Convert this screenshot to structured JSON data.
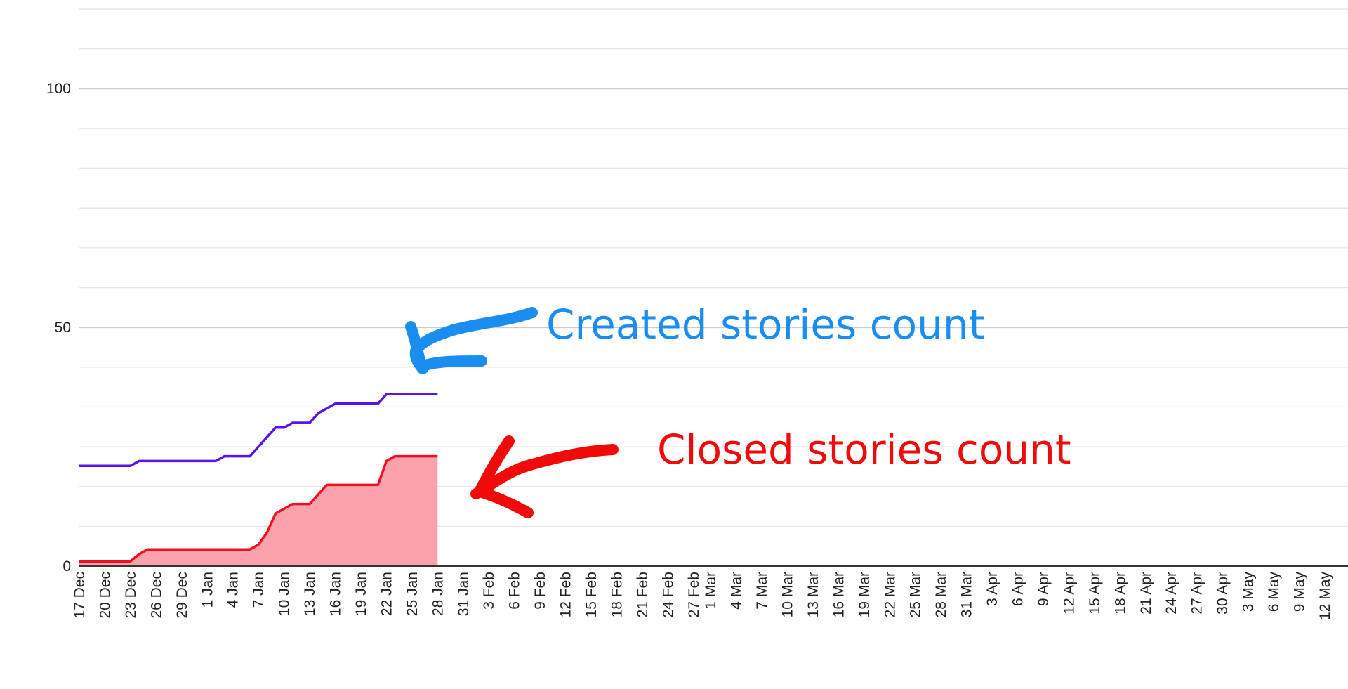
{
  "chart_data": {
    "type": "line",
    "title": "",
    "xlabel": "",
    "ylabel": "",
    "ylim": [
      0,
      118
    ],
    "y_ticks": [
      0,
      50,
      100
    ],
    "y_minor_step": 8.33,
    "grid": true,
    "x_tick_labels": [
      "17 Dec",
      "20 Dec",
      "23 Dec",
      "26 Dec",
      "29 Dec",
      "1 Jan",
      "4 Jan",
      "7 Jan",
      "10 Jan",
      "13 Jan",
      "16 Jan",
      "19 Jan",
      "22 Jan",
      "25 Jan",
      "28 Jan",
      "31 Jan",
      "3 Feb",
      "6 Feb",
      "9 Feb",
      "12 Feb",
      "15 Feb",
      "18 Feb",
      "21 Feb",
      "24 Feb",
      "27 Feb",
      "1 Mar",
      "4 Mar",
      "7 Mar",
      "10 Mar",
      "13 Mar",
      "16 Mar",
      "19 Mar",
      "22 Mar",
      "25 Mar",
      "28 Mar",
      "31 Mar",
      "3 Apr",
      "6 Apr",
      "9 Apr",
      "12 Apr",
      "15 Apr",
      "18 Apr",
      "21 Apr",
      "24 Apr",
      "27 Apr",
      "30 Apr",
      "3 May",
      "6 May",
      "9 May",
      "12 May"
    ],
    "series": [
      {
        "name": "Created stories count",
        "color": "#5b13ec",
        "fill": false,
        "points": [
          [
            "17 Dec",
            21
          ],
          [
            "20 Dec",
            21
          ],
          [
            "23 Dec",
            21
          ],
          [
            "24 Dec",
            22
          ],
          [
            "26 Dec",
            22
          ],
          [
            "29 Dec",
            22
          ],
          [
            "2 Jan",
            22
          ],
          [
            "3 Jan",
            23
          ],
          [
            "6 Jan",
            23
          ],
          [
            "7 Jan",
            25
          ],
          [
            "9 Jan",
            29
          ],
          [
            "10 Jan",
            29
          ],
          [
            "11 Jan",
            30
          ],
          [
            "13 Jan",
            30
          ],
          [
            "14 Jan",
            32
          ],
          [
            "15 Jan",
            33
          ],
          [
            "16 Jan",
            34
          ],
          [
            "19 Jan",
            34
          ],
          [
            "21 Jan",
            34
          ],
          [
            "22 Jan",
            36
          ],
          [
            "25 Jan",
            36
          ],
          [
            "28 Jan",
            36
          ]
        ]
      },
      {
        "name": "Closed stories count",
        "color": "#ee1122",
        "fill": true,
        "fill_color": "#fca2ad",
        "points": [
          [
            "17 Dec",
            1
          ],
          [
            "20 Dec",
            1
          ],
          [
            "23 Dec",
            1
          ],
          [
            "24 Dec",
            2.5
          ],
          [
            "25 Dec",
            3.5
          ],
          [
            "26 Dec",
            3.5
          ],
          [
            "29 Dec",
            3.5
          ],
          [
            "1 Jan",
            3.5
          ],
          [
            "4 Jan",
            3.5
          ],
          [
            "6 Jan",
            3.5
          ],
          [
            "7 Jan",
            4.5
          ],
          [
            "8 Jan",
            7
          ],
          [
            "9 Jan",
            11
          ],
          [
            "10 Jan",
            12
          ],
          [
            "11 Jan",
            13
          ],
          [
            "13 Jan",
            13
          ],
          [
            "14 Jan",
            15
          ],
          [
            "15 Jan",
            17
          ],
          [
            "16 Jan",
            17
          ],
          [
            "19 Jan",
            17
          ],
          [
            "21 Jan",
            17
          ],
          [
            "22 Jan",
            22
          ],
          [
            "23 Jan",
            23
          ],
          [
            "25 Jan",
            23
          ],
          [
            "28 Jan",
            23
          ]
        ]
      }
    ]
  },
  "annotations": [
    {
      "label": "Created stories count",
      "color": "#1a8ef0"
    },
    {
      "label": "Closed stories count",
      "color": "#f00a0a"
    }
  ]
}
